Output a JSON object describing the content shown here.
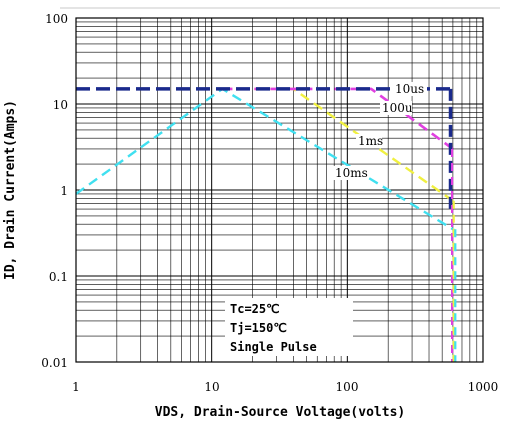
{
  "chart_data": {
    "type": "line",
    "title": "",
    "xlabel": "VDS, Drain-Source Voltage(volts)",
    "ylabel": "ID, Drain Current(Amps)",
    "x_scale": "log",
    "y_scale": "log",
    "xlim": [
      1,
      1000
    ],
    "ylim": [
      0.01,
      100
    ],
    "x_ticks": [
      "1",
      "10",
      "100",
      "1000"
    ],
    "y_ticks": [
      "100",
      "10",
      "1",
      "0.1",
      "0.01"
    ],
    "grid": true,
    "series": [
      {
        "name": "10us",
        "color": "#1a2a8c",
        "points": [
          [
            1,
            15
          ],
          [
            600,
            15
          ]
        ]
      },
      {
        "name": "100u",
        "color": "#e040e0",
        "points": [
          [
            12,
            15
          ],
          [
            150,
            15
          ],
          [
            600,
            3
          ]
        ]
      },
      {
        "name": "1ms",
        "color": "#f0f040",
        "points": [
          [
            12,
            15
          ],
          [
            40,
            15
          ],
          [
            600,
            0.75
          ]
        ]
      },
      {
        "name": "10ms",
        "color": "#40e0f0",
        "points": [
          [
            1,
            0.9
          ],
          [
            12,
            15
          ],
          [
            600,
            0.35
          ]
        ]
      }
    ],
    "limit_lines": [
      {
        "color": "#1a2a8c",
        "x": 600,
        "y_from": 15,
        "y_to": 0.6
      },
      {
        "color": "#e040e0",
        "x": 600,
        "y_from": 3,
        "y_to": 0.01
      },
      {
        "color": "#f0f040",
        "x": 600,
        "y_from": 0.75,
        "y_to": 0.01
      },
      {
        "color": "#40e0f0",
        "x": 600,
        "y_from": 0.35,
        "y_to": 0.01
      }
    ],
    "annotation_lines": [
      "Tc=25℃",
      "Tj=150℃",
      "Single Pulse"
    ]
  }
}
